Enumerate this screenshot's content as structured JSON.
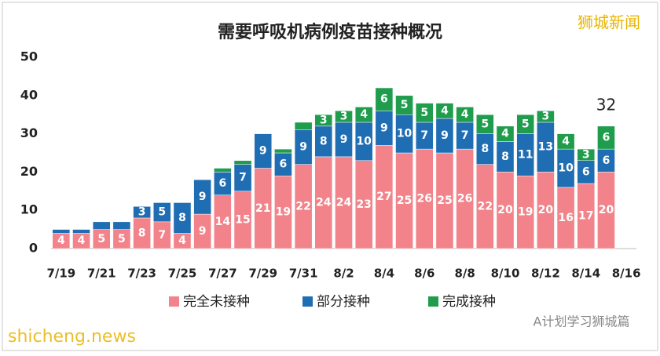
{
  "chart_data": {
    "type": "stacked_bar",
    "title": "需要呼吸机病例疫苗接种概况",
    "categories": [
      "7/19",
      null,
      "7/21",
      null,
      "7/23",
      null,
      "7/25",
      null,
      "7/27",
      null,
      "7/29",
      null,
      "7/31",
      null,
      "8/2",
      null,
      "8/4",
      null,
      "8/6",
      null,
      "8/8",
      null,
      "8/10",
      null,
      "8/12",
      null,
      "8/14",
      null,
      "8/16"
    ],
    "series": [
      {
        "name": "完全未接种",
        "color": "#f2838a",
        "values": [
          4,
          4,
          5,
          5,
          8,
          7,
          4,
          9,
          14,
          15,
          21,
          19,
          22,
          24,
          24,
          23,
          27,
          25,
          26,
          25,
          26,
          22,
          20,
          19,
          20,
          16,
          17,
          20,
          null
        ]
      },
      {
        "name": "部分接种",
        "color": "#1f6db3",
        "values": [
          1,
          1,
          2,
          2,
          3,
          5,
          8,
          9,
          6,
          7,
          9,
          6,
          9,
          8,
          9,
          10,
          9,
          10,
          7,
          9,
          7,
          8,
          8,
          11,
          13,
          10,
          6,
          6,
          null
        ]
      },
      {
        "name": "完成接种",
        "color": "#1f9d4c",
        "values": [
          0,
          0,
          0,
          0,
          0,
          0,
          0,
          0,
          1,
          1,
          0,
          1,
          2,
          3,
          3,
          4,
          6,
          5,
          5,
          4,
          4,
          5,
          4,
          5,
          3,
          4,
          3,
          6,
          null
        ]
      }
    ],
    "ylim": [
      0,
      50
    ],
    "yticks": [
      0,
      10,
      20,
      30,
      40,
      50
    ],
    "annotation": "32",
    "watermarks": [
      "狮城新闻",
      "shicheng.news",
      "A计划学习狮城篇"
    ]
  }
}
